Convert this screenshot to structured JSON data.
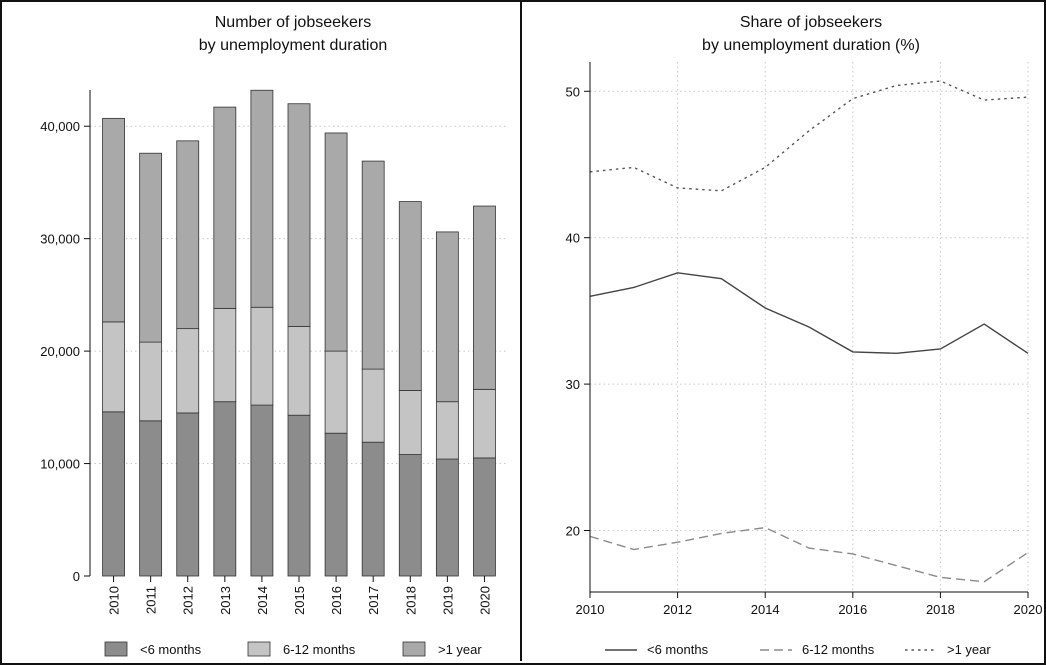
{
  "colors": {
    "short": "#8c8c8c",
    "mid": "#c4c4c4",
    "long": "#a9a9a9",
    "line": "#555555",
    "grid": "#c8c8c8"
  },
  "chart_data": [
    {
      "type": "bar",
      "stacked": true,
      "title": "Number of jobseekers",
      "subtitle": "by unemployment duration",
      "categories": [
        "2010",
        "2011",
        "2012",
        "2013",
        "2014",
        "2015",
        "2016",
        "2017",
        "2018",
        "2019",
        "2020"
      ],
      "series": [
        {
          "name": "<6 months",
          "color": "#8c8c8c",
          "values": [
            14600,
            13800,
            14500,
            15500,
            15200,
            14300,
            12700,
            11900,
            10800,
            10400,
            10500
          ]
        },
        {
          "name": "6-12 months",
          "color": "#c4c4c4",
          "values": [
            8000,
            7000,
            7500,
            8300,
            8700,
            7900,
            7300,
            6500,
            5700,
            5100,
            6100
          ]
        },
        {
          "name": ">1 year",
          "color": "#a9a9a9",
          "values": [
            18100,
            16800,
            16700,
            17900,
            19300,
            19800,
            19400,
            18500,
            16800,
            15100,
            16300
          ]
        }
      ],
      "ylim": [
        0,
        45000
      ],
      "yticks": [
        0,
        10000,
        20000,
        30000,
        40000
      ],
      "ytick_labels": [
        "0",
        "10,000",
        "20,000",
        "30,000",
        "40,000"
      ],
      "grid": true,
      "legend": "bottom"
    },
    {
      "type": "line",
      "title": "Share of jobseekers",
      "subtitle": "by unemployment duration (%)",
      "x": [
        2010,
        2011,
        2012,
        2013,
        2014,
        2015,
        2016,
        2017,
        2018,
        2019,
        2020
      ],
      "series": [
        {
          "name": "<6 months",
          "style": "solid",
          "values": [
            36.0,
            36.6,
            37.6,
            37.2,
            35.2,
            33.9,
            32.2,
            32.1,
            32.4,
            34.1,
            32.1
          ]
        },
        {
          "name": "6-12 months",
          "style": "dashed",
          "values": [
            19.6,
            18.7,
            19.2,
            19.8,
            20.2,
            18.8,
            18.4,
            17.6,
            16.8,
            16.5,
            18.5
          ]
        },
        {
          "name": ">1 year",
          "style": "dotted",
          "values": [
            44.5,
            44.8,
            43.4,
            43.2,
            44.8,
            47.3,
            49.5,
            50.4,
            50.7,
            49.4,
            49.6
          ]
        }
      ],
      "xlim": [
        2010,
        2020
      ],
      "xticks": [
        2010,
        2012,
        2014,
        2016,
        2018,
        2020
      ],
      "ylim": [
        15.8,
        52
      ],
      "yticks": [
        20,
        30,
        40,
        50
      ],
      "grid": true,
      "legend": "bottom"
    }
  ]
}
